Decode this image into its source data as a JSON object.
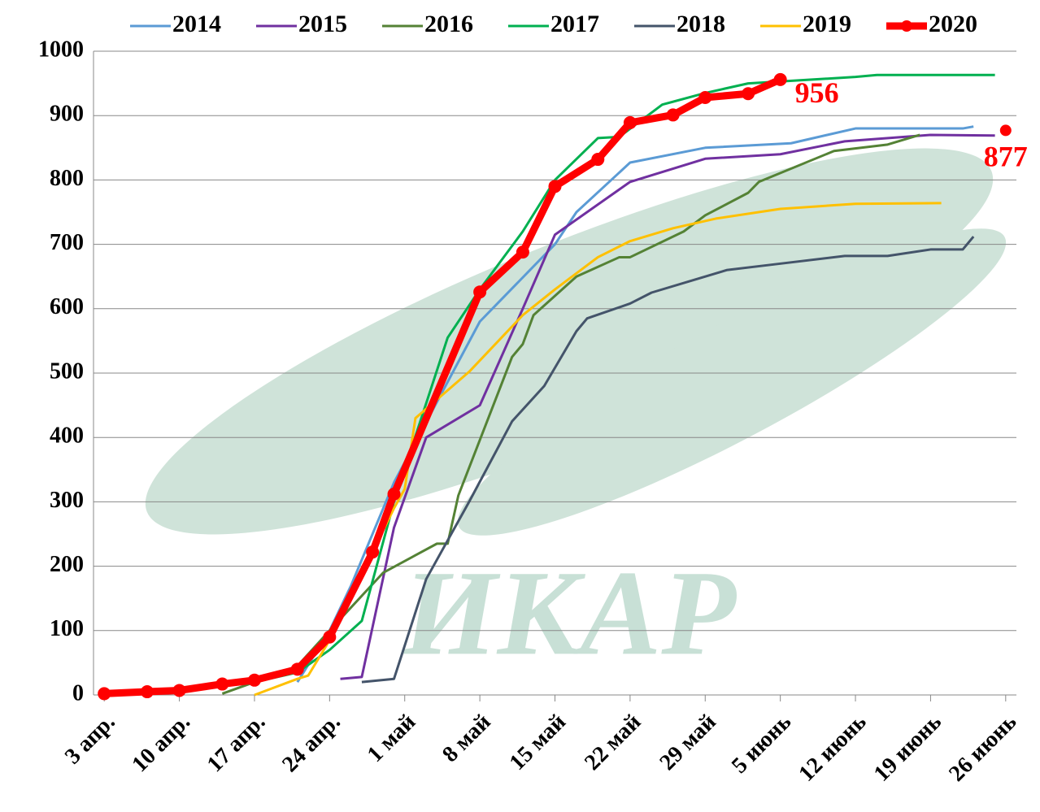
{
  "chart_data": {
    "type": "line",
    "watermark": "ИКАР",
    "xlim": [
      -1,
      85
    ],
    "ylim": [
      0,
      1000
    ],
    "xticks": [
      {
        "value": 0,
        "label": "3 апр."
      },
      {
        "value": 7,
        "label": "10 апр."
      },
      {
        "value": 14,
        "label": "17 апр."
      },
      {
        "value": 21,
        "label": "24 апр."
      },
      {
        "value": 28,
        "label": "1 май"
      },
      {
        "value": 35,
        "label": "8 май"
      },
      {
        "value": 42,
        "label": "15 май"
      },
      {
        "value": 49,
        "label": "22 май"
      },
      {
        "value": 56,
        "label": "29 май"
      },
      {
        "value": 63,
        "label": "5 июнь"
      },
      {
        "value": 70,
        "label": "12 июнь"
      },
      {
        "value": 77,
        "label": "19 июнь"
      },
      {
        "value": 84,
        "label": "26 июнь"
      }
    ],
    "yticks": [
      0,
      100,
      200,
      300,
      400,
      500,
      600,
      700,
      800,
      900,
      1000
    ],
    "grid": true,
    "legend": "top",
    "series": [
      {
        "name": "2014",
        "color": "#5b9bd5",
        "width": 3,
        "x": [
          18,
          21,
          23,
          27,
          35,
          42,
          44,
          49,
          56,
          64,
          70,
          80,
          81
        ],
        "values": [
          20,
          100,
          170,
          330,
          580,
          700,
          750,
          827,
          850,
          857,
          880,
          880,
          883
        ]
      },
      {
        "name": "2015",
        "color": "#7030a0",
        "width": 3,
        "x": [
          22,
          24,
          27,
          30,
          35,
          39,
          42,
          49,
          56,
          63,
          69,
          77,
          83
        ],
        "values": [
          25,
          28,
          260,
          400,
          450,
          600,
          715,
          797,
          833,
          840,
          860,
          870,
          869
        ]
      },
      {
        "name": "2016",
        "color": "#548235",
        "width": 3,
        "x": [
          11,
          14,
          18,
          21,
          26,
          31,
          32,
          33,
          38,
          39,
          40,
          44,
          48,
          49,
          54,
          56,
          60,
          61,
          68,
          73,
          76
        ],
        "values": [
          2,
          20,
          45,
          100,
          190,
          235,
          235,
          310,
          525,
          545,
          590,
          650,
          680,
          680,
          720,
          745,
          780,
          797,
          845,
          855,
          870
        ]
      },
      {
        "name": "2017",
        "color": "#00b050",
        "width": 3,
        "x": [
          14,
          18,
          21,
          24,
          27,
          32,
          35,
          39,
          42,
          46,
          48,
          52,
          56,
          60,
          70,
          72,
          80,
          83
        ],
        "values": [
          20,
          35,
          70,
          115,
          300,
          555,
          630,
          720,
          800,
          865,
          867,
          917,
          935,
          950,
          960,
          963,
          963,
          963
        ]
      },
      {
        "name": "2018",
        "color": "#44546a",
        "width": 3,
        "x": [
          24,
          27,
          30,
          34,
          38,
          41,
          44,
          45,
          49,
          51,
          55,
          58,
          62,
          69,
          73,
          77,
          80,
          81
        ],
        "values": [
          20,
          25,
          180,
          300,
          425,
          480,
          565,
          585,
          608,
          625,
          645,
          660,
          668,
          682,
          682,
          692,
          692,
          712
        ]
      },
      {
        "name": "2019",
        "color": "#ffc000",
        "width": 3,
        "x": [
          14,
          18,
          19,
          21,
          27,
          28,
          29,
          34,
          39,
          42,
          46,
          49,
          53,
          57,
          63,
          70,
          78
        ],
        "values": [
          0,
          25,
          30,
          85,
          290,
          320,
          430,
          502,
          590,
          630,
          680,
          705,
          725,
          740,
          755,
          763,
          764
        ]
      },
      {
        "name": "2020",
        "color": "#ff0000",
        "width": 9,
        "marker": true,
        "x": [
          0,
          4,
          7,
          11,
          14,
          18,
          21,
          25,
          27,
          35,
          39,
          42,
          46,
          49,
          53,
          56,
          60,
          63
        ],
        "values": [
          2,
          5,
          7,
          17,
          23,
          40,
          90,
          222,
          312,
          626,
          688,
          790,
          832,
          889,
          901,
          928,
          934,
          956
        ]
      }
    ],
    "annotations": [
      {
        "text": "956",
        "x": 63,
        "y": 956,
        "color": "#ff0000"
      },
      {
        "text": "877",
        "x": 84,
        "y": 877,
        "color": "#ff0000",
        "marker": true
      }
    ]
  }
}
